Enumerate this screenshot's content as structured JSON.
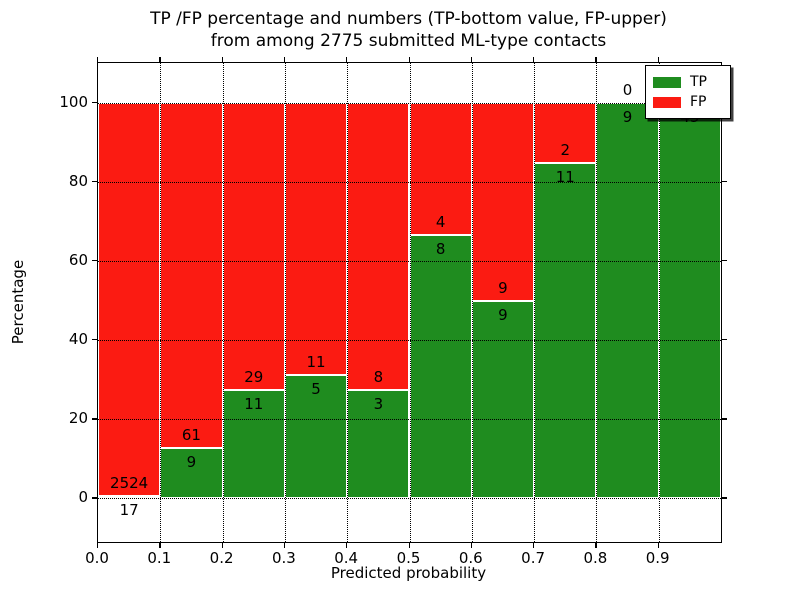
{
  "title": {
    "line1": "TP /FP percentage and numbers (TP-bottom value, FP-upper)",
    "line2": "from among 2775 submitted ML-type contacts"
  },
  "axes": {
    "x_label": "Predicted probability",
    "y_label": "Percentage",
    "x_ticks": [
      "0.0",
      "0.1",
      "0.2",
      "0.3",
      "0.4",
      "0.5",
      "0.6",
      "0.7",
      "0.8",
      "0.9"
    ],
    "y_ticks": [
      "0",
      "20",
      "40",
      "60",
      "80",
      "100"
    ]
  },
  "legend": {
    "items": [
      {
        "label": "TP",
        "color": "#1f8c1f"
      },
      {
        "label": "FP",
        "color": "#fb1b12"
      }
    ]
  },
  "colors": {
    "tp": "#1f8c1f",
    "fp": "#fb1b12",
    "bar_edge": "#ffffff",
    "grid": "#000000"
  },
  "chart_data": {
    "type": "bar",
    "subtype": "stacked_percentage",
    "title": "TP /FP percentage and numbers (TP-bottom value, FP-upper) from among 2775 submitted ML-type contacts",
    "xlabel": "Predicted probability",
    "ylabel": "Percentage",
    "xlim": [
      0.0,
      1.0
    ],
    "ylim": [
      -11,
      110
    ],
    "bin_width": 0.1,
    "total_contacts": 2775,
    "grid": "dotted",
    "legend_position": "upper right",
    "categories": [
      "0.0-0.1",
      "0.1-0.2",
      "0.2-0.3",
      "0.3-0.4",
      "0.4-0.5",
      "0.5-0.6",
      "0.6-0.7",
      "0.7-0.8",
      "0.8-0.9",
      "0.9-1.0"
    ],
    "series": [
      {
        "name": "TP",
        "counts": [
          17,
          9,
          11,
          5,
          3,
          8,
          9,
          11,
          9,
          45
        ],
        "pct": [
          0.669,
          12.857,
          27.5,
          31.25,
          27.273,
          66.667,
          50.0,
          84.615,
          100.0,
          100.0
        ]
      },
      {
        "name": "FP",
        "counts": [
          2524,
          61,
          29,
          11,
          8,
          4,
          9,
          2,
          0,
          0
        ],
        "pct": [
          99.331,
          87.143,
          72.5,
          68.75,
          72.727,
          33.333,
          50.0,
          15.385,
          0.0,
          0.0
        ]
      }
    ]
  }
}
